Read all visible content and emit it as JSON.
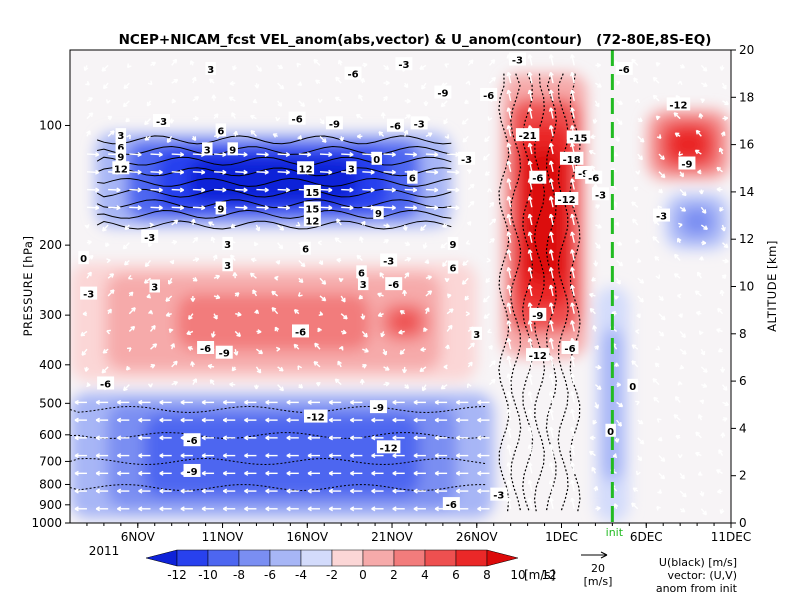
{
  "chart_data": {
    "type": "heatmap",
    "title": "NCEP+NICAM_fcst VEL_anom(abs,vector) & U_anom(contour)   (72-80E,8S-EQ)",
    "ylabel_left": "PRESSURE [hPa]",
    "ylabel_right": "ALTITUDE [km]",
    "year_label": "2011",
    "x_ticks": [
      "6NOV",
      "11NOV",
      "16NOV",
      "21NOV",
      "26NOV",
      "1DEC",
      "6DEC",
      "11DEC"
    ],
    "x_tick_days": [
      6,
      11,
      16,
      21,
      26,
      31,
      36,
      41
    ],
    "x_range_days": [
      2,
      41
    ],
    "init_day": 34,
    "init_label": "init",
    "pressure_ticks": [
      {
        "label": "100",
        "p": 100
      },
      {
        "label": "200",
        "p": 200
      },
      {
        "label": "300",
        "p": 300
      },
      {
        "label": "400",
        "p": 400
      },
      {
        "label": "500",
        "p": 500
      },
      {
        "label": "600",
        "p": 600
      },
      {
        "label": "700",
        "p": 700
      },
      {
        "label": "800",
        "p": 800
      },
      {
        "label": "900",
        "p": 900
      },
      {
        "label": "1000",
        "p": 1000
      }
    ],
    "altitude_ticks": [
      {
        "label": "0",
        "km": 0
      },
      {
        "label": "2",
        "km": 2
      },
      {
        "label": "4",
        "km": 4
      },
      {
        "label": "6",
        "km": 6
      },
      {
        "label": "8",
        "km": 8
      },
      {
        "label": "10",
        "km": 10
      },
      {
        "label": "12",
        "km": 12
      },
      {
        "label": "14",
        "km": 14
      },
      {
        "label": "16",
        "km": 16
      },
      {
        "label": "18",
        "km": 18
      },
      {
        "label": "20",
        "km": 20
      }
    ],
    "altitude_range_km": [
      0,
      20
    ],
    "colorbar": {
      "labels": [
        "-12",
        "-10",
        "-8",
        "-6",
        "-4",
        "-2",
        "0",
        "2",
        "4",
        "6",
        "8",
        "10",
        "12"
      ],
      "unit": "[m/s]",
      "levels": [
        -12,
        -10,
        -8,
        -6,
        -4,
        -2,
        0,
        2,
        4,
        6,
        8,
        10,
        12
      ],
      "colors": [
        "#0e22d8",
        "#2841ee",
        "#4d66f0",
        "#7a8ef2",
        "#a7b6f6",
        "#d3dbfb",
        "#fbd6d6",
        "#f6aaaa",
        "#f27c7c",
        "#ee5050",
        "#ea2828",
        "#dc0a0a"
      ]
    },
    "vector_ref": {
      "value": "20",
      "unit": "[m/s]"
    },
    "legend_notes": [
      "U(black) [m/s]",
      "vector: (U,V)",
      "anom from init"
    ],
    "regions": [
      {
        "sign": "neg",
        "day0": 3.5,
        "day1": 24.5,
        "km0": 12.5,
        "km1": 16.5,
        "amp": 12
      },
      {
        "sign": "neg",
        "day0": 2,
        "day1": 27,
        "km0": 0.2,
        "km1": 5.5,
        "amp": 7
      },
      {
        "sign": "pos",
        "day0": 2,
        "day1": 26,
        "km0": 6,
        "km1": 11,
        "amp": 3
      },
      {
        "sign": "pos",
        "day0": 20,
        "day1": 23.5,
        "km0": 7.5,
        "km1": 9.5,
        "amp": 6
      },
      {
        "sign": "pos",
        "day0": 27.5,
        "day1": 32.5,
        "km0": 7,
        "km1": 19,
        "amp": 11
      },
      {
        "sign": "pos",
        "day0": 36,
        "day1": 41,
        "km0": 14.5,
        "km1": 17.5,
        "amp": 8
      },
      {
        "sign": "neg",
        "day0": 37,
        "day1": 41,
        "km0": 11.5,
        "km1": 14,
        "amp": 4
      },
      {
        "sign": "neg",
        "day0": 33,
        "day1": 35,
        "km0": 0,
        "km1": 10,
        "amp": 2
      }
    ],
    "contour_labels": [
      {
        "text": "3",
        "day": 10.3,
        "km": 19.2
      },
      {
        "text": "-6",
        "day": 18.7,
        "km": 19.0
      },
      {
        "text": "-3",
        "day": 21.7,
        "km": 19.4
      },
      {
        "text": "-3",
        "day": 28.4,
        "km": 19.6
      },
      {
        "text": "-6",
        "day": 26.7,
        "km": 18.1
      },
      {
        "text": "-9",
        "day": 24.0,
        "km": 18.2
      },
      {
        "text": "-6",
        "day": 34.7,
        "km": 19.2
      },
      {
        "text": "-12",
        "day": 37.9,
        "km": 17.7
      },
      {
        "text": "-3",
        "day": 7.4,
        "km": 17.0
      },
      {
        "text": "-6",
        "day": 15.4,
        "km": 17.1
      },
      {
        "text": "-9",
        "day": 17.6,
        "km": 16.9
      },
      {
        "text": "-6",
        "day": 21.2,
        "km": 16.8
      },
      {
        "text": "-3",
        "day": 22.6,
        "km": 16.9
      },
      {
        "text": "-21",
        "day": 29.0,
        "km": 16.4
      },
      {
        "text": "-15",
        "day": 32.0,
        "km": 16.3
      },
      {
        "text": "-3",
        "day": 25.4,
        "km": 15.4
      },
      {
        "text": "-18",
        "day": 31.6,
        "km": 15.4
      },
      {
        "text": "-9",
        "day": 32.3,
        "km": 14.8
      },
      {
        "text": "-6",
        "day": 29.6,
        "km": 14.6
      },
      {
        "text": "-6",
        "day": 32.9,
        "km": 14.6
      },
      {
        "text": "-12",
        "day": 31.3,
        "km": 13.7
      },
      {
        "text": "-3",
        "day": 33.3,
        "km": 13.9
      },
      {
        "text": "-9",
        "day": 38.4,
        "km": 15.2
      },
      {
        "text": "-3",
        "day": 36.9,
        "km": 13.0
      },
      {
        "text": "3",
        "day": 5.0,
        "km": 16.4
      },
      {
        "text": "6",
        "day": 5.0,
        "km": 15.9
      },
      {
        "text": "9",
        "day": 5.0,
        "km": 15.5
      },
      {
        "text": "12",
        "day": 5.0,
        "km": 15.0
      },
      {
        "text": "6",
        "day": 10.9,
        "km": 16.6
      },
      {
        "text": "3",
        "day": 10.1,
        "km": 15.8
      },
      {
        "text": "9",
        "day": 11.6,
        "km": 15.8
      },
      {
        "text": "12",
        "day": 15.9,
        "km": 15.0
      },
      {
        "text": "3",
        "day": 18.6,
        "km": 15.0
      },
      {
        "text": "0",
        "day": 20.1,
        "km": 15.4
      },
      {
        "text": "6",
        "day": 22.2,
        "km": 14.6
      },
      {
        "text": "15",
        "day": 16.3,
        "km": 14.0
      },
      {
        "text": "9",
        "day": 10.9,
        "km": 13.3
      },
      {
        "text": "15",
        "day": 16.3,
        "km": 13.3
      },
      {
        "text": "12",
        "day": 16.3,
        "km": 12.8
      },
      {
        "text": "9",
        "day": 20.2,
        "km": 13.1
      },
      {
        "text": "-3",
        "day": 6.7,
        "km": 12.1
      },
      {
        "text": "3",
        "day": 11.3,
        "km": 11.8
      },
      {
        "text": "6",
        "day": 15.9,
        "km": 11.6
      },
      {
        "text": "9",
        "day": 24.6,
        "km": 11.8
      },
      {
        "text": "0",
        "day": 2.8,
        "km": 11.2
      },
      {
        "text": "3",
        "day": 11.3,
        "km": 10.9
      },
      {
        "text": "6",
        "day": 19.2,
        "km": 10.6
      },
      {
        "text": "-3",
        "day": 20.8,
        "km": 11.1
      },
      {
        "text": "6",
        "day": 24.6,
        "km": 10.8
      },
      {
        "text": "3",
        "day": 7.0,
        "km": 10.0
      },
      {
        "text": "3",
        "day": 19.3,
        "km": 10.1
      },
      {
        "text": "-6",
        "day": 21.1,
        "km": 10.1
      },
      {
        "text": "-3",
        "day": 3.1,
        "km": 9.7
      },
      {
        "text": "-9",
        "day": 29.6,
        "km": 8.8
      },
      {
        "text": "-6",
        "day": 15.6,
        "km": 8.1
      },
      {
        "text": "3",
        "day": 26.0,
        "km": 8.0
      },
      {
        "text": "-6",
        "day": 10.0,
        "km": 7.4
      },
      {
        "text": "-9",
        "day": 11.1,
        "km": 7.2
      },
      {
        "text": "-12",
        "day": 29.6,
        "km": 7.1
      },
      {
        "text": "-6",
        "day": 31.5,
        "km": 7.4
      },
      {
        "text": "-6",
        "day": 4.1,
        "km": 5.9
      },
      {
        "text": "0",
        "day": 35.2,
        "km": 5.8
      },
      {
        "text": "-9",
        "day": 20.2,
        "km": 4.9
      },
      {
        "text": "-12",
        "day": 16.5,
        "km": 4.5
      },
      {
        "text": "0",
        "day": 33.9,
        "km": 3.9
      },
      {
        "text": "-6",
        "day": 9.2,
        "km": 3.5
      },
      {
        "text": "-12",
        "day": 20.8,
        "km": 3.2
      },
      {
        "text": "-9",
        "day": 9.2,
        "km": 2.2
      },
      {
        "text": "-3",
        "day": 27.3,
        "km": 1.2
      },
      {
        "text": "-6",
        "day": 24.5,
        "km": 0.8
      }
    ]
  }
}
